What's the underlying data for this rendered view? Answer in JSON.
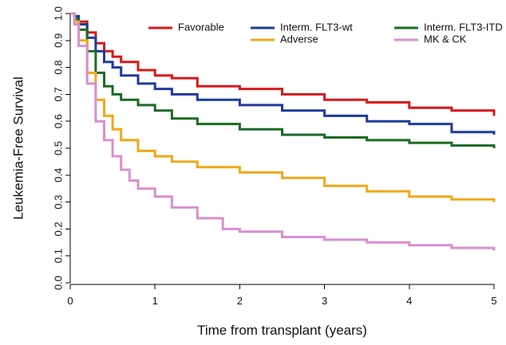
{
  "chart_data": {
    "type": "line",
    "step": true,
    "xlabel": "Time from transplant (years)",
    "ylabel": "Leukemia-Free Survival",
    "xlim": [
      0,
      5
    ],
    "ylim": [
      0,
      1
    ],
    "x_ticks": [
      0,
      1,
      2,
      3,
      4,
      5
    ],
    "y_ticks": [
      0.0,
      0.1,
      0.2,
      0.3,
      0.4,
      0.5,
      0.6,
      0.7,
      0.8,
      0.9,
      1.0
    ],
    "x_tick_labels": [
      "0",
      "1",
      "2",
      "3",
      "4",
      "5"
    ],
    "y_tick_labels": [
      "0.0",
      "0.1",
      "0.2",
      "0.3",
      "0.4",
      "0.5",
      "0.6",
      "0.7",
      "0.8",
      "0.9",
      "1.0"
    ],
    "grid": false,
    "legend_position": "top-right",
    "series": [
      {
        "name": "Favorable",
        "color": "#d7191c",
        "x": [
          0,
          0.05,
          0.1,
          0.2,
          0.3,
          0.4,
          0.5,
          0.6,
          0.8,
          1.0,
          1.2,
          1.5,
          2.0,
          2.5,
          3.0,
          3.5,
          4.0,
          4.5,
          5.0
        ],
        "y": [
          1.0,
          0.99,
          0.97,
          0.93,
          0.89,
          0.86,
          0.84,
          0.82,
          0.79,
          0.77,
          0.76,
          0.73,
          0.72,
          0.7,
          0.68,
          0.67,
          0.65,
          0.64,
          0.62
        ]
      },
      {
        "name": "Interm. FLT3-wt",
        "color": "#1f3a9a",
        "x": [
          0,
          0.05,
          0.1,
          0.2,
          0.3,
          0.4,
          0.5,
          0.6,
          0.8,
          1.0,
          1.2,
          1.5,
          2.0,
          2.5,
          3.0,
          3.5,
          4.0,
          4.5,
          5.0
        ],
        "y": [
          1.0,
          0.99,
          0.96,
          0.91,
          0.86,
          0.82,
          0.8,
          0.77,
          0.74,
          0.72,
          0.7,
          0.68,
          0.66,
          0.64,
          0.62,
          0.6,
          0.59,
          0.56,
          0.55
        ]
      },
      {
        "name": "Interm. FLT3-ITD",
        "color": "#1a6b24",
        "x": [
          0,
          0.05,
          0.1,
          0.2,
          0.3,
          0.4,
          0.5,
          0.6,
          0.8,
          1.0,
          1.2,
          1.5,
          2.0,
          2.5,
          3.0,
          3.5,
          4.0,
          4.5,
          5.0
        ],
        "y": [
          1.0,
          0.98,
          0.94,
          0.86,
          0.78,
          0.73,
          0.7,
          0.68,
          0.66,
          0.64,
          0.61,
          0.59,
          0.57,
          0.55,
          0.54,
          0.53,
          0.52,
          0.51,
          0.5
        ]
      },
      {
        "name": "Adverse",
        "color": "#f0a818",
        "x": [
          0,
          0.05,
          0.1,
          0.2,
          0.3,
          0.4,
          0.5,
          0.6,
          0.8,
          1.0,
          1.2,
          1.5,
          2.0,
          2.5,
          3.0,
          3.5,
          4.0,
          4.5,
          5.0
        ],
        "y": [
          1.0,
          0.97,
          0.9,
          0.78,
          0.68,
          0.62,
          0.57,
          0.53,
          0.49,
          0.47,
          0.45,
          0.43,
          0.41,
          0.39,
          0.36,
          0.34,
          0.32,
          0.31,
          0.3
        ]
      },
      {
        "name": "MK & CK",
        "color": "#d98fcf",
        "x": [
          0,
          0.05,
          0.1,
          0.2,
          0.3,
          0.4,
          0.5,
          0.6,
          0.7,
          0.8,
          1.0,
          1.2,
          1.5,
          1.8,
          2.0,
          2.5,
          3.0,
          3.5,
          4.0,
          4.5,
          5.0
        ],
        "y": [
          1.0,
          0.96,
          0.88,
          0.74,
          0.6,
          0.53,
          0.47,
          0.42,
          0.38,
          0.35,
          0.32,
          0.28,
          0.24,
          0.2,
          0.19,
          0.17,
          0.16,
          0.15,
          0.14,
          0.13,
          0.12
        ]
      }
    ]
  }
}
